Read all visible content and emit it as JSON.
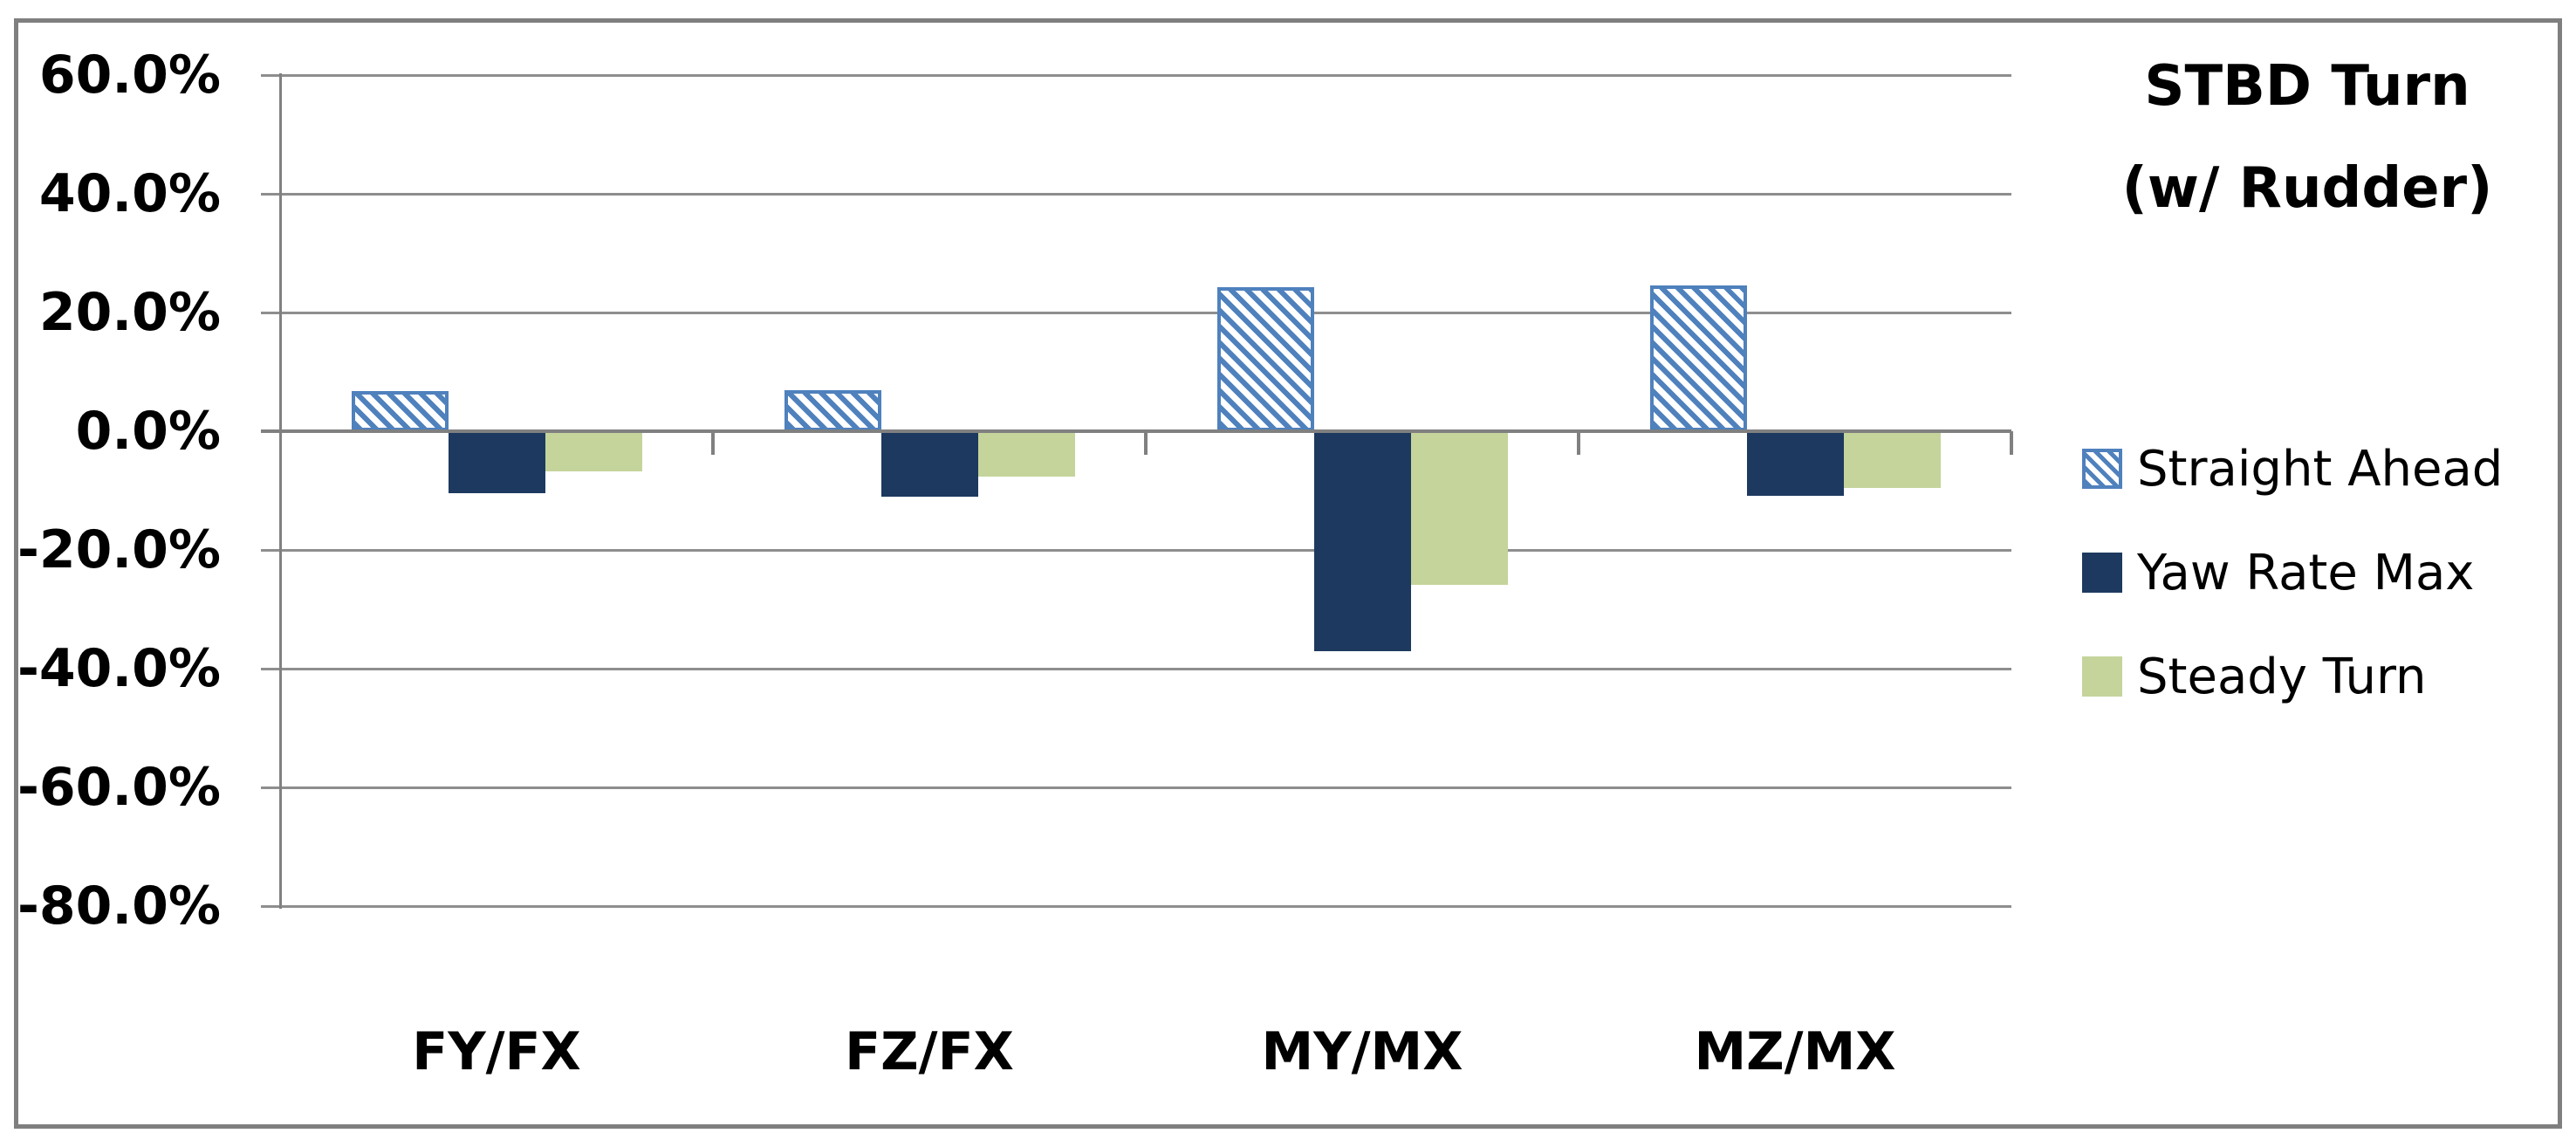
{
  "title": {
    "line1": "STBD Turn",
    "line2": "(w/ Rudder)"
  },
  "chart_data": {
    "type": "bar",
    "categories": [
      "FY/FX",
      "FZ/FX",
      "MY/MX",
      "MZ/MX"
    ],
    "series": [
      {
        "name": "Straight Ahead",
        "pattern": "diagonal-hatch",
        "color": "#4f81bd",
        "fill_background": "#ffffff",
        "values": [
          6.8,
          6.9,
          24.2,
          24.6
        ]
      },
      {
        "name": "Yaw Rate Max",
        "pattern": "solid",
        "color": "#1d395f",
        "values": [
          -10.4,
          -11.0,
          -37.0,
          -10.9
        ]
      },
      {
        "name": "Steady Turn",
        "pattern": "solid",
        "color": "#c4d49b",
        "values": [
          -6.8,
          -7.6,
          -25.9,
          -9.6
        ]
      }
    ],
    "ylim": [
      -80,
      60
    ],
    "ytick_step": 20,
    "ytick_labels": [
      "60.0%",
      "40.0%",
      "20.0%",
      "0.0%",
      "-20.0%",
      "-40.0%",
      "-60.0%",
      "-80.0%"
    ],
    "value_format": "percent",
    "grid": true,
    "legend_position": "right",
    "title_position": "top-right"
  },
  "colors": {
    "gridline": "#8e8e8e",
    "axis_line": "#808080",
    "frame_border": "#7f7f7f",
    "text": "#000000",
    "hatch_blue": "#4f81bd",
    "navy": "#1d395f",
    "light_green": "#c4d49b",
    "background": "#ffffff"
  }
}
